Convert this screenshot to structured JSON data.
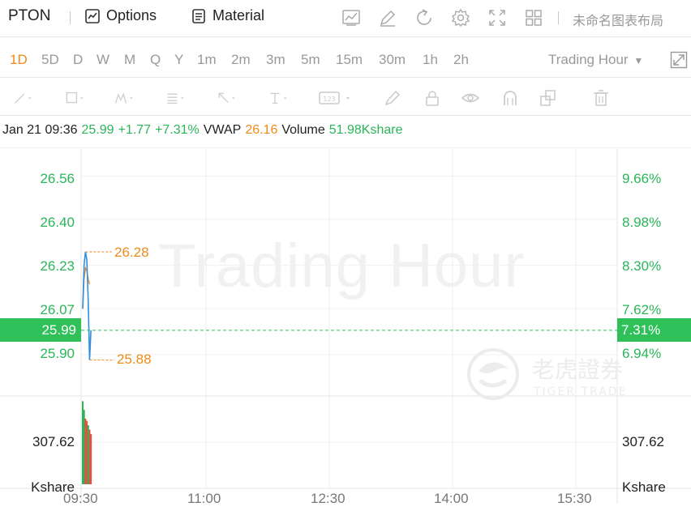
{
  "toolbar": {
    "symbol": "PTON",
    "options_label": "Options",
    "material_label": "Material",
    "layout_name": "未命名图表布局"
  },
  "intervals": {
    "items": [
      "1D",
      "5D",
      "D",
      "W",
      "M",
      "Q",
      "Y",
      "1m",
      "2m",
      "3m",
      "5m",
      "15m",
      "30m",
      "1h",
      "2h"
    ],
    "active": "1D",
    "session_label": "Trading Hour"
  },
  "info": {
    "datetime": "Jan 21 09:36",
    "price": "25.99",
    "change": "+1.77",
    "change_pct": "+7.31%",
    "vwap_label": "VWAP",
    "vwap": "26.16",
    "volume_label": "Volume",
    "volume": "51.98Kshare"
  },
  "chart": {
    "watermark": "Trading Hour",
    "brand_cn": "老虎證券",
    "brand_en": "TIGER TRADE",
    "price_axis": [
      "26.56",
      "26.40",
      "26.23",
      "26.07",
      "25.90"
    ],
    "pct_axis": [
      "9.66%",
      "8.98%",
      "8.30%",
      "7.62%",
      "6.94%"
    ],
    "current_price": "25.99",
    "current_pct": "7.31%",
    "high_label": "26.28",
    "low_label": "25.88",
    "volume_axis_value": "307.62",
    "volume_axis_unit": "Kshare",
    "time_axis": [
      "09:30",
      "11:00",
      "12:30",
      "14:00",
      "15:30"
    ],
    "colors": {
      "up": "#2ab55a",
      "down": "#e0523d",
      "vwap": "#f08a1a",
      "price_line": "#2f8fe0"
    }
  },
  "chart_data": {
    "type": "line",
    "title": "",
    "x_unit": "time",
    "price_series": [
      {
        "t": "09:30",
        "v": 26.07
      },
      {
        "t": "09:31",
        "v": 26.23
      },
      {
        "t": "09:32",
        "v": 26.28
      },
      {
        "t": "09:33",
        "v": 26.25
      },
      {
        "t": "09:34",
        "v": 26.1
      },
      {
        "t": "09:35",
        "v": 25.88
      },
      {
        "t": "09:36",
        "v": 25.99
      }
    ],
    "vwap_series": [
      {
        "t": "09:30",
        "v": 26.07
      },
      {
        "t": "09:31",
        "v": 26.18
      },
      {
        "t": "09:32",
        "v": 26.22
      },
      {
        "t": "09:33",
        "v": 26.21
      },
      {
        "t": "09:34",
        "v": 26.18
      },
      {
        "t": "09:35",
        "v": 26.16
      }
    ],
    "volume_series": [
      {
        "t": "09:30",
        "v": 380,
        "dir": "up"
      },
      {
        "t": "09:31",
        "v": 340,
        "dir": "up"
      },
      {
        "t": "09:32",
        "v": 300,
        "dir": "down"
      },
      {
        "t": "09:33",
        "v": 290,
        "dir": "down"
      },
      {
        "t": "09:34",
        "v": 270,
        "dir": "up"
      },
      {
        "t": "09:35",
        "v": 250,
        "dir": "down"
      },
      {
        "t": "09:36",
        "v": 230,
        "dir": "down"
      }
    ],
    "high": 26.28,
    "low": 25.88,
    "ylim": [
      25.78,
      26.66
    ],
    "volume_max": 400
  }
}
